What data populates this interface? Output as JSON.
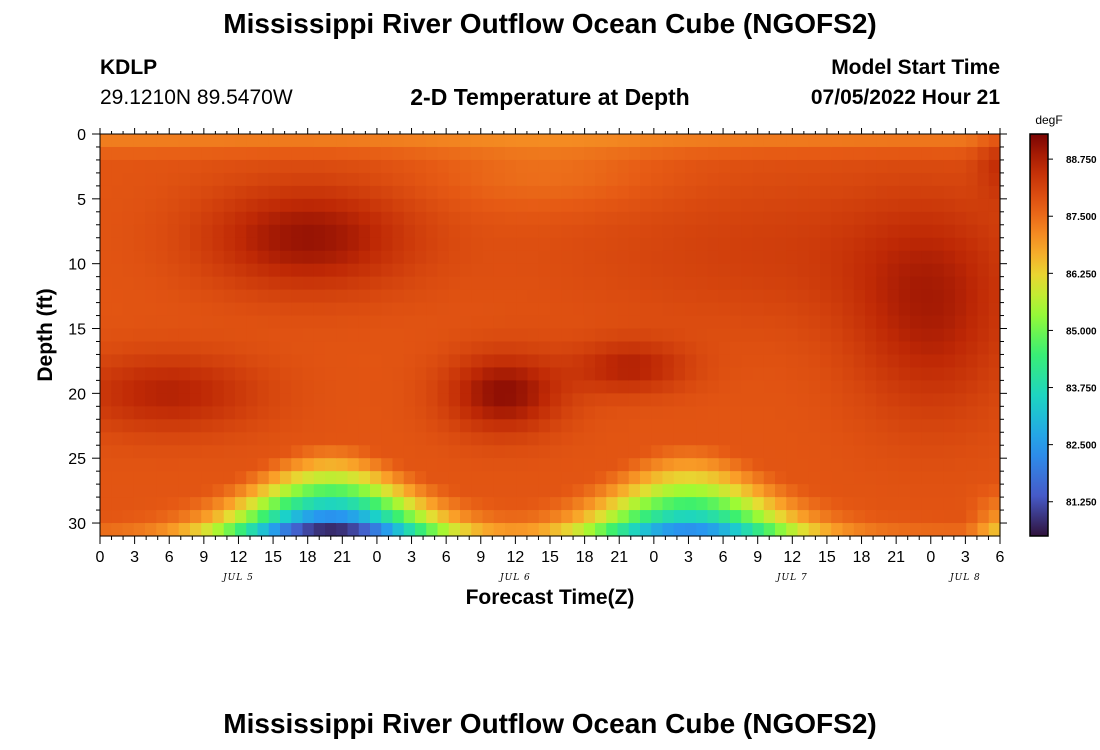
{
  "page": {
    "title_top": "Mississippi River Outflow Ocean Cube (NGOFS2)",
    "title_bottom": "Mississippi River Outflow Ocean Cube (NGOFS2)",
    "station_id": "KDLP",
    "station_coords": "29.1210N  89.5470W",
    "plot_title": "2-D Temperature at Depth",
    "model_label": "Model Start Time",
    "model_time": "07/05/2022 Hour 21"
  },
  "chart_data": {
    "type": "heatmap",
    "title": "2-D Temperature at Depth",
    "xlabel": "Forecast Time(Z)",
    "ylabel": "Depth (ft)",
    "x_range_hours": [
      0,
      78
    ],
    "y_range_ft": [
      0,
      31
    ],
    "x_ticks": [
      "0",
      "3",
      "6",
      "9",
      "12",
      "15",
      "18",
      "21",
      "0",
      "3",
      "6",
      "9",
      "12",
      "15",
      "18",
      "21",
      "0",
      "3",
      "6",
      "9",
      "12",
      "15",
      "18",
      "21",
      "0",
      "3",
      "6"
    ],
    "x_tick_hours": [
      0,
      3,
      6,
      9,
      12,
      15,
      18,
      21,
      24,
      27,
      30,
      33,
      36,
      39,
      42,
      45,
      48,
      51,
      54,
      57,
      60,
      63,
      66,
      69,
      72,
      75,
      78
    ],
    "day_labels": [
      {
        "text": "JUL 5",
        "hour": 12
      },
      {
        "text": "JUL 6",
        "hour": 36
      },
      {
        "text": "JUL 7",
        "hour": 60
      },
      {
        "text": "JUL 8",
        "hour": 75
      }
    ],
    "y_ticks": [
      0,
      5,
      10,
      15,
      20,
      25,
      30
    ],
    "colorbar": {
      "units": "degF",
      "min": 80.5,
      "max": 89.3,
      "ticks": [
        "88.750",
        "87.500",
        "86.250",
        "85.000",
        "83.750",
        "82.500",
        "81.250"
      ],
      "tick_values": [
        88.75,
        87.5,
        86.25,
        85.0,
        83.75,
        82.5,
        81.25
      ]
    },
    "field": {
      "surface_temp": 87.8,
      "warm_core_temp": 89.0,
      "bottom_cold_pulses": [
        {
          "center_hour": 20,
          "bottom_temp": 80.7
        },
        {
          "center_hour": 51,
          "bottom_temp": 82.4
        }
      ]
    }
  }
}
